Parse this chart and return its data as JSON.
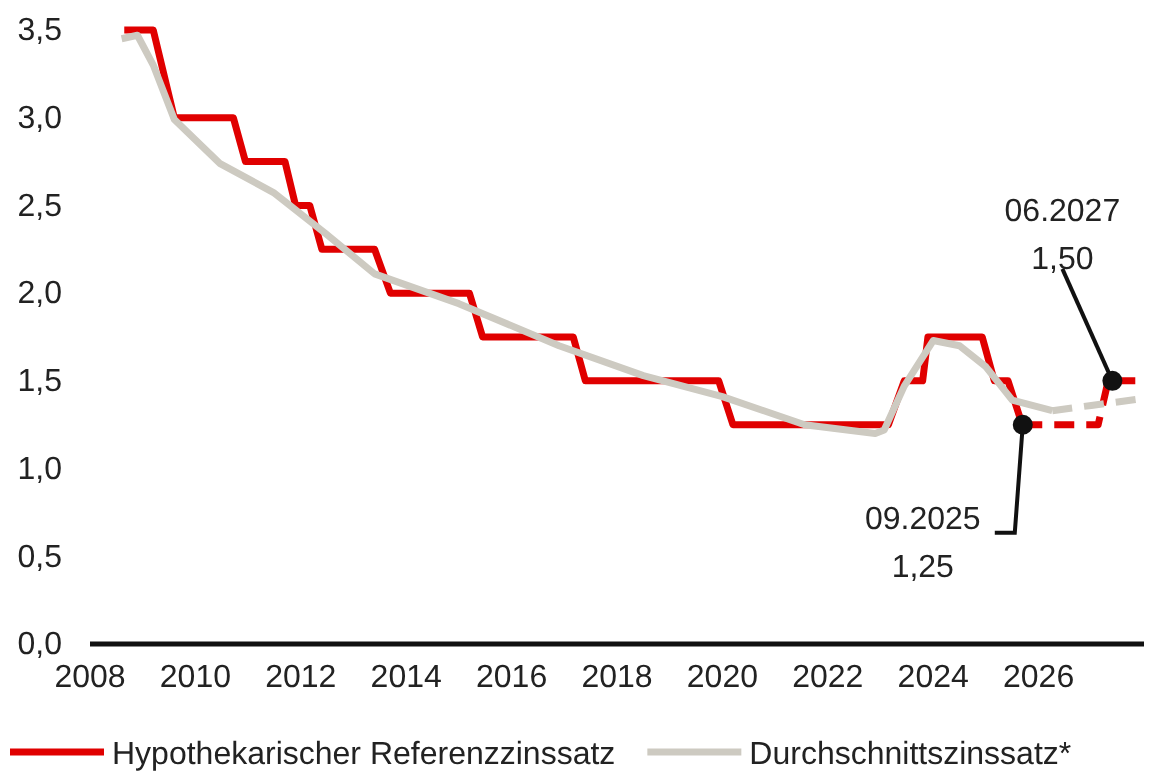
{
  "chart_data": {
    "type": "line",
    "xlim": [
      2008,
      2028
    ],
    "xticks": [
      2008,
      2010,
      2012,
      2014,
      2016,
      2018,
      2020,
      2022,
      2024,
      2026
    ],
    "ylim": [
      0,
      3.5
    ],
    "yticks": [
      {
        "value": 0,
        "label": "0,0"
      },
      {
        "value": 0.5,
        "label": "0,5"
      },
      {
        "value": 1,
        "label": "1,0"
      },
      {
        "value": 1.5,
        "label": "1,5"
      },
      {
        "value": 2,
        "label": "2,0"
      },
      {
        "value": 2.5,
        "label": "2,5"
      },
      {
        "value": 3,
        "label": "3,0"
      },
      {
        "value": 3.5,
        "label": "3,5"
      }
    ],
    "grid": false,
    "legend": "bottom",
    "marker": "none",
    "series": [
      {
        "name": "Hypothekarischer Referenzzinssatz",
        "color": "#e00000",
        "line_style": "solid",
        "x": [
          2008.65,
          2009.2,
          2009.6,
          2010.72,
          2010.95,
          2011.7,
          2011.9,
          2012.17,
          2012.4,
          2013.4,
          2013.7,
          2015.2,
          2015.45,
          2017.17,
          2017.4,
          2019.93,
          2020.2,
          2023.15,
          2023.45,
          2023.8,
          2023.9,
          2024.93,
          2025.16,
          2025.42,
          2025.69
        ],
        "values": [
          3.5,
          3.5,
          3.0,
          3.0,
          2.75,
          2.75,
          2.5,
          2.5,
          2.25,
          2.25,
          2.0,
          2.0,
          1.75,
          1.75,
          1.5,
          1.5,
          1.25,
          1.25,
          1.5,
          1.5,
          1.75,
          1.75,
          1.5,
          1.5,
          1.25
        ]
      },
      {
        "name": "Durchschnittszinssatz*",
        "color": "#cdcac1",
        "line_style": "solid",
        "x": [
          2008.6,
          2008.9,
          2009.2,
          2009.6,
          2010.46,
          2011.5,
          2012.47,
          2013.4,
          2015.0,
          2016.9,
          2018.5,
          2020.0,
          2021.56,
          2022.9,
          2023.07,
          2023.45,
          2024.0,
          2024.5,
          2025.0,
          2025.5,
          2026.26
        ],
        "values": [
          3.45,
          3.47,
          3.3,
          2.99,
          2.74,
          2.57,
          2.34,
          2.11,
          1.94,
          1.7,
          1.53,
          1.41,
          1.25,
          1.2,
          1.22,
          1.47,
          1.73,
          1.7,
          1.58,
          1.39,
          1.33
        ]
      },
      {
        "color": "#e00000",
        "line_style": "dashed",
        "x": [
          2025.69,
          2027.13,
          2027.32,
          2028.0
        ],
        "values": [
          1.25,
          1.25,
          1.5,
          1.5
        ]
      },
      {
        "color": "#cdcac1",
        "line_style": "dashed",
        "x": [
          2026.26,
          2027.0,
          2028.0
        ],
        "values": [
          1.33,
          1.36,
          1.4
        ]
      }
    ],
    "annotations": [
      {
        "text": "09.2025\n1,25",
        "x": 2025.7,
        "y": 1.25
      },
      {
        "text": "06.2027\n1,50",
        "x": 2027.4,
        "y": 1.5
      }
    ]
  }
}
